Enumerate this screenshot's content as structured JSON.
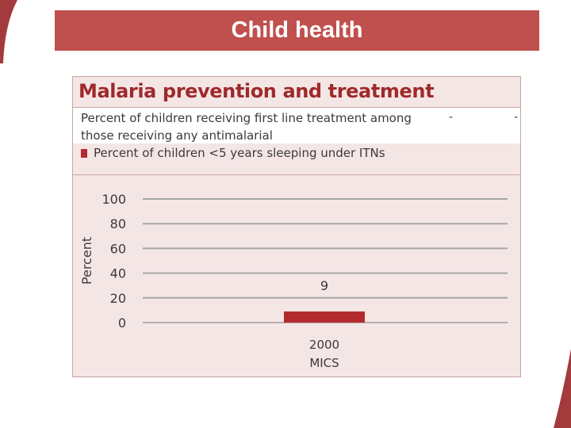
{
  "header": {
    "title": "Child health"
  },
  "panel": {
    "title": "Malaria prevention and treatment",
    "legend": [
      {
        "label": "Percent of children receiving first line treatment among those receiving any antimalarial",
        "values": [
          "-",
          "-"
        ]
      },
      {
        "label": "Percent of children <5 years sleeping under ITNs",
        "color": "#b22b2e"
      }
    ]
  },
  "chart_data": {
    "type": "bar",
    "categories": [
      "2000\nMICS"
    ],
    "category_lines": [
      [
        "2000",
        "MICS"
      ]
    ],
    "series": [
      {
        "name": "Percent of children <5 years sleeping under ITNs",
        "values": [
          9
        ],
        "color": "#b22b2e"
      }
    ],
    "data_labels": [
      "9"
    ],
    "title": "Malaria prevention and treatment",
    "xlabel": "",
    "ylabel": "Percent",
    "ylim": [
      0,
      100
    ],
    "yticks": [
      0,
      20,
      40,
      60,
      80,
      100
    ],
    "grid": true
  },
  "colors": {
    "accent": "#c0504d",
    "panel_bg": "#f5e6e6",
    "bar": "#b22b2e",
    "title_text": "#9e2a2b"
  }
}
